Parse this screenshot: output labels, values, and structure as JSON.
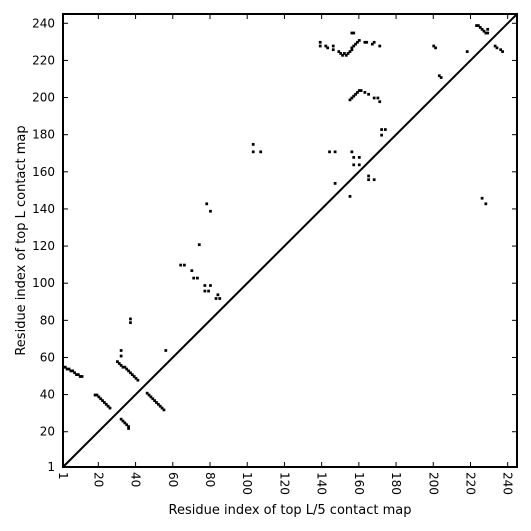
{
  "chart_data": {
    "type": "scatter",
    "title": "",
    "xlabel": "Residue index of top L/5 contact map",
    "ylabel": "Residue index of top L contact map",
    "xlim": [
      1,
      245
    ],
    "ylim": [
      1,
      245
    ],
    "x_ticks": [
      1,
      20,
      40,
      60,
      80,
      100,
      120,
      140,
      160,
      180,
      200,
      220,
      240
    ],
    "y_ticks": [
      1,
      20,
      40,
      60,
      80,
      100,
      120,
      140,
      160,
      180,
      200,
      220,
      240
    ],
    "x_tick_rotation": -90,
    "grid": false,
    "marker": "square",
    "marker_color": "#000000",
    "diagonal": [
      [
        1,
        1
      ],
      [
        245,
        245
      ]
    ],
    "series": [
      {
        "points": [
          [
            1,
            55
          ],
          [
            2,
            55
          ],
          [
            3,
            54
          ],
          [
            4,
            54
          ],
          [
            5,
            53
          ],
          [
            6,
            53
          ],
          [
            7,
            52
          ],
          [
            8,
            51
          ],
          [
            9,
            51
          ],
          [
            10,
            50
          ],
          [
            11,
            50
          ],
          [
            18,
            40
          ],
          [
            19,
            40
          ],
          [
            20,
            39
          ],
          [
            21,
            38
          ],
          [
            22,
            37
          ],
          [
            23,
            36
          ],
          [
            24,
            35
          ],
          [
            25,
            34
          ],
          [
            26,
            33
          ],
          [
            30,
            58
          ],
          [
            31,
            57
          ],
          [
            32,
            56
          ],
          [
            33,
            55
          ],
          [
            34,
            55
          ],
          [
            35,
            54
          ],
          [
            36,
            53
          ],
          [
            37,
            52
          ],
          [
            38,
            51
          ],
          [
            39,
            50
          ],
          [
            40,
            49
          ],
          [
            41,
            48
          ],
          [
            32,
            64
          ],
          [
            32,
            61
          ],
          [
            32,
            27
          ],
          [
            33,
            26
          ],
          [
            34,
            25
          ],
          [
            35,
            24
          ],
          [
            36,
            23
          ],
          [
            36,
            22
          ],
          [
            37,
            81
          ],
          [
            37,
            79
          ],
          [
            46,
            41
          ],
          [
            47,
            40
          ],
          [
            48,
            39
          ],
          [
            49,
            38
          ],
          [
            50,
            37
          ],
          [
            51,
            36
          ],
          [
            52,
            35
          ],
          [
            53,
            34
          ],
          [
            54,
            33
          ],
          [
            55,
            32
          ],
          [
            56,
            64
          ],
          [
            64,
            110
          ],
          [
            66,
            110
          ],
          [
            70,
            107
          ],
          [
            71,
            103
          ],
          [
            73,
            103
          ],
          [
            74,
            121
          ],
          [
            77,
            96
          ],
          [
            77,
            99
          ],
          [
            78,
            143
          ],
          [
            79,
            96
          ],
          [
            80,
            99
          ],
          [
            80,
            139
          ],
          [
            83,
            92
          ],
          [
            84,
            94
          ],
          [
            85,
            92
          ],
          [
            103,
            175
          ],
          [
            103,
            171
          ],
          [
            107,
            171
          ],
          [
            139,
            230
          ],
          [
            139,
            228
          ],
          [
            142,
            228
          ],
          [
            143,
            227
          ],
          [
            144,
            171
          ],
          [
            146,
            228
          ],
          [
            146,
            226
          ],
          [
            147,
            171
          ],
          [
            147,
            154
          ],
          [
            149,
            225
          ],
          [
            150,
            224
          ],
          [
            151,
            223
          ],
          [
            152,
            224
          ],
          [
            153,
            223
          ],
          [
            154,
            224
          ],
          [
            155,
            225
          ],
          [
            155,
            147
          ],
          [
            156,
            226
          ],
          [
            156,
            227
          ],
          [
            157,
            228
          ],
          [
            158,
            229
          ],
          [
            159,
            230
          ],
          [
            160,
            231
          ],
          [
            156,
            235
          ],
          [
            157,
            235
          ],
          [
            163,
            230
          ],
          [
            164,
            230
          ],
          [
            167,
            229
          ],
          [
            168,
            230
          ],
          [
            171,
            228
          ],
          [
            155,
            199
          ],
          [
            156,
            200
          ],
          [
            157,
            201
          ],
          [
            158,
            202
          ],
          [
            159,
            203
          ],
          [
            160,
            204
          ],
          [
            161,
            204
          ],
          [
            163,
            203
          ],
          [
            165,
            202
          ],
          [
            168,
            200
          ],
          [
            170,
            200
          ],
          [
            171,
            198
          ],
          [
            172,
            183
          ],
          [
            172,
            180
          ],
          [
            174,
            183
          ],
          [
            156,
            171
          ],
          [
            157,
            168
          ],
          [
            157,
            164
          ],
          [
            160,
            168
          ],
          [
            160,
            164
          ],
          [
            165,
            158
          ],
          [
            165,
            156
          ],
          [
            168,
            156
          ],
          [
            200,
            228
          ],
          [
            201,
            227
          ],
          [
            203,
            212
          ],
          [
            204,
            211
          ],
          [
            218,
            225
          ],
          [
            223,
            239
          ],
          [
            224,
            239
          ],
          [
            225,
            238
          ],
          [
            226,
            237
          ],
          [
            227,
            236
          ],
          [
            228,
            235
          ],
          [
            229,
            235
          ],
          [
            229,
            237
          ],
          [
            226,
            146
          ],
          [
            228,
            143
          ],
          [
            233,
            228
          ],
          [
            234,
            227
          ],
          [
            236,
            226
          ],
          [
            237,
            225
          ]
        ]
      }
    ]
  }
}
